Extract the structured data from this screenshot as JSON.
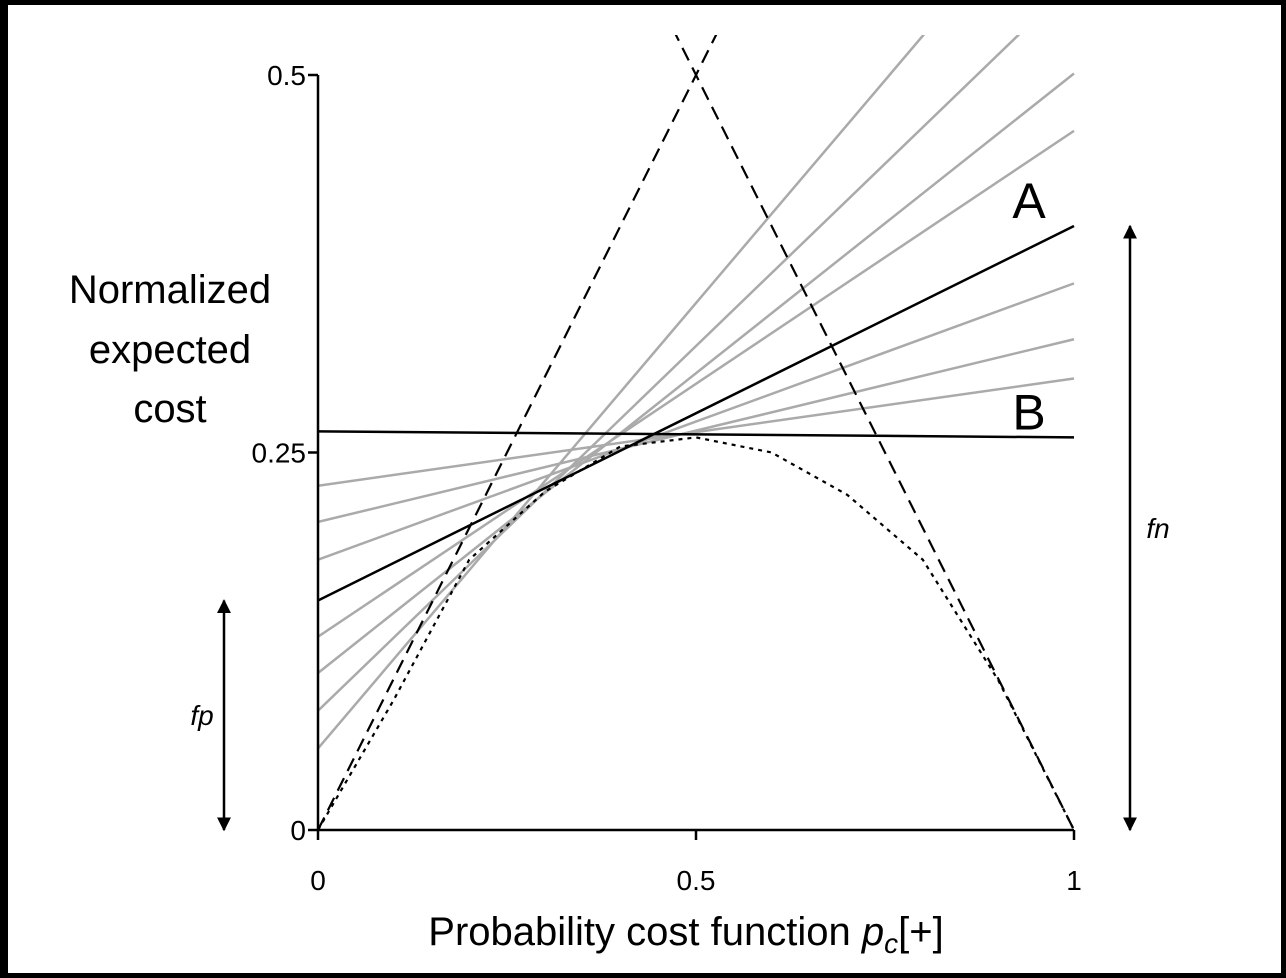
{
  "chart_data": {
    "type": "line",
    "ylabel": [
      "Normalized",
      "expected",
      "cost"
    ],
    "xlabel": {
      "text": "Probability cost function",
      "symbol": "p",
      "subscript": "c",
      "suffix": "[+]"
    },
    "xlim": [
      0,
      1
    ],
    "ylim": [
      0,
      0.5
    ],
    "xticks": [
      0,
      0.5,
      1
    ],
    "yticks": [
      0,
      0.25,
      0.5
    ],
    "series": [
      {
        "x": [
          0,
          1
        ],
        "values": [
          0.228,
          0.299
        ],
        "color": "#aaaaaa",
        "style": "solid"
      },
      {
        "x": [
          0,
          1
        ],
        "values": [
          0.204,
          0.325
        ],
        "color": "#aaaaaa",
        "style": "solid"
      },
      {
        "x": [
          0,
          1
        ],
        "values": [
          0.179,
          0.362
        ],
        "color": "#aaaaaa",
        "style": "solid"
      },
      {
        "x": [
          0,
          1
        ],
        "values": [
          0.128,
          0.463
        ],
        "color": "#aaaaaa",
        "style": "solid"
      },
      {
        "x": [
          0,
          1
        ],
        "values": [
          0.104,
          0.501
        ],
        "color": "#aaaaaa",
        "style": "solid"
      },
      {
        "x": [
          0,
          1
        ],
        "values": [
          0.079,
          0.562
        ],
        "color": "#aaaaaa",
        "style": "solid"
      },
      {
        "x": [
          0,
          1
        ],
        "values": [
          0.054,
          0.644
        ],
        "color": "#aaaaaa",
        "style": "solid"
      },
      {
        "name": "A",
        "x": [
          0,
          1
        ],
        "values": [
          0.152,
          0.4
        ],
        "color": "#000000",
        "style": "solid"
      },
      {
        "name": "B",
        "x": [
          0,
          1
        ],
        "values": [
          0.264,
          0.26
        ],
        "color": "#000000",
        "style": "solid"
      },
      {
        "x": [
          0,
          1
        ],
        "values": [
          0,
          1
        ],
        "color": "#000000",
        "style": "dashed"
      },
      {
        "x": [
          0,
          1
        ],
        "values": [
          1,
          0
        ],
        "color": "#000000",
        "style": "dashed"
      },
      {
        "x": [
          0,
          0.1,
          0.2,
          0.3,
          0.4,
          0.5,
          0.6,
          0.7,
          0.8,
          0.9,
          1
        ],
        "values": [
          0,
          0.086,
          0.179,
          0.224,
          0.254,
          0.26,
          0.25,
          0.222,
          0.179,
          0.099,
          0
        ],
        "color": "#000000",
        "style": "dotted"
      }
    ],
    "annotations": [
      {
        "text": "fp",
        "series": 7,
        "point": 0
      },
      {
        "text": "fn",
        "series": 7,
        "point": 1
      }
    ]
  }
}
